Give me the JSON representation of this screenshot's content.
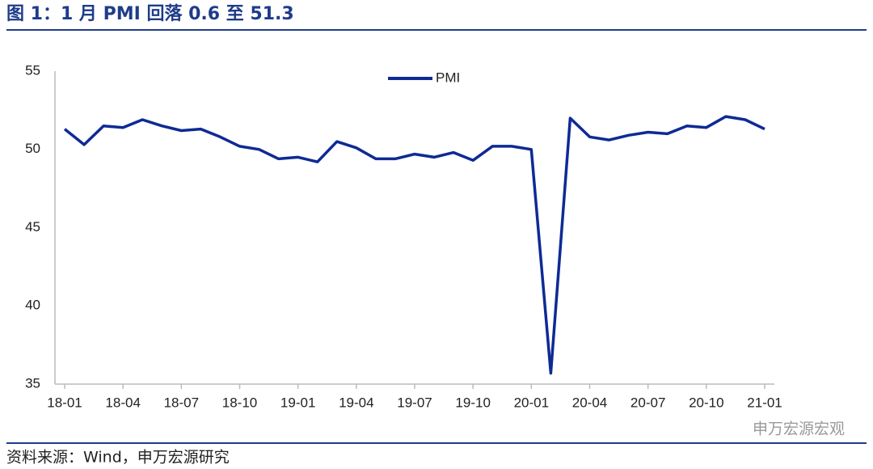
{
  "chart_data": {
    "type": "line",
    "title": "图 1：1 月 PMI 回落 0.6 至 51.3",
    "categories": [
      "18-01",
      null,
      null,
      "18-04",
      null,
      null,
      "18-07",
      null,
      null,
      "18-10",
      null,
      null,
      "19-01",
      null,
      null,
      "19-04",
      null,
      null,
      "19-07",
      null,
      null,
      "19-10",
      null,
      null,
      "20-01",
      null,
      null,
      "20-04",
      null,
      null,
      "20-07",
      null,
      null,
      "20-10",
      null,
      null,
      "21-01"
    ],
    "series": [
      {
        "name": "PMI",
        "color": "#0e2a94",
        "values": [
          51.3,
          50.3,
          51.5,
          51.4,
          51.9,
          51.5,
          51.2,
          51.3,
          50.8,
          50.2,
          50.0,
          49.4,
          49.5,
          49.2,
          50.5,
          50.1,
          49.4,
          49.4,
          49.7,
          49.5,
          49.8,
          49.3,
          50.2,
          50.2,
          50.0,
          35.7,
          52.0,
          50.8,
          50.6,
          50.9,
          51.1,
          51.0,
          51.5,
          51.4,
          52.1,
          51.9,
          51.3
        ]
      }
    ],
    "ylim": [
      35,
      55
    ],
    "yticks": [
      35,
      40,
      45,
      50,
      55
    ],
    "grid": false,
    "legend": "top",
    "source": "资料来源：Wind，申万宏源研究",
    "watermark": "申万宏源宏观"
  }
}
